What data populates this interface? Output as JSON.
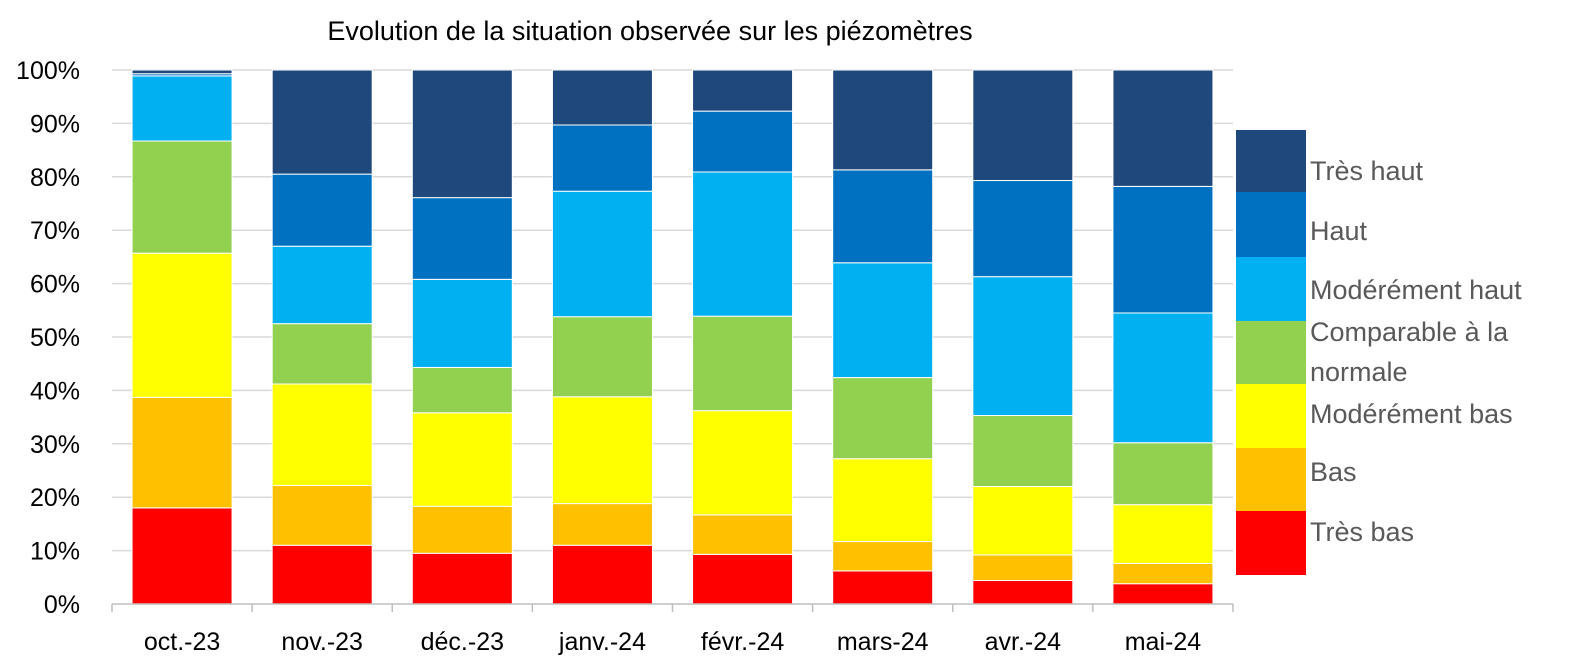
{
  "chart_data": {
    "type": "bar",
    "stacked": true,
    "title": "Evolution de la situation observée sur les  piézomètres",
    "categories": [
      "oct.-23",
      "nov.-23",
      "déc.-23",
      "janv.-24",
      "févr.-24",
      "mars-24",
      "avr.-24",
      "mai-24"
    ],
    "ylim": [
      0,
      100
    ],
    "yticks": [
      "0%",
      "10%",
      "20%",
      "30%",
      "40%",
      "50%",
      "60%",
      "70%",
      "80%",
      "90%",
      "100%"
    ],
    "grid": true,
    "legend_position": "right",
    "series": [
      {
        "name": "Très bas",
        "color": "#FF0000",
        "values": [
          18,
          11,
          9.5,
          11,
          9.3,
          6.2,
          4.4,
          3.8
        ]
      },
      {
        "name": "Bas",
        "color": "#FFC000",
        "values": [
          20.7,
          11.2,
          8.8,
          7.8,
          7.4,
          5.5,
          4.8,
          3.8
        ]
      },
      {
        "name": "Modérément bas",
        "color": "#FFFF00",
        "values": [
          27,
          19,
          17.5,
          20,
          19.5,
          15.5,
          12.8,
          11
        ]
      },
      {
        "name": "Comparable à la normale",
        "color": "#92D050",
        "values": [
          21,
          11.3,
          8.5,
          15,
          17.7,
          15.2,
          13.3,
          11.6
        ]
      },
      {
        "name": "Modérément haut",
        "color": "#00B0F0",
        "values": [
          12.2,
          14.5,
          16.5,
          23.5,
          27,
          21.5,
          26,
          24.3
        ]
      },
      {
        "name": "Haut",
        "color": "#0070C0",
        "values": [
          0.4,
          13.5,
          15.3,
          12.4,
          11.4,
          17.4,
          18,
          23.7
        ]
      },
      {
        "name": "Très haut",
        "color": "#1F497D",
        "values": [
          0.7,
          19.5,
          23.9,
          10.3,
          7.7,
          18.7,
          20.7,
          21.8
        ]
      }
    ]
  }
}
